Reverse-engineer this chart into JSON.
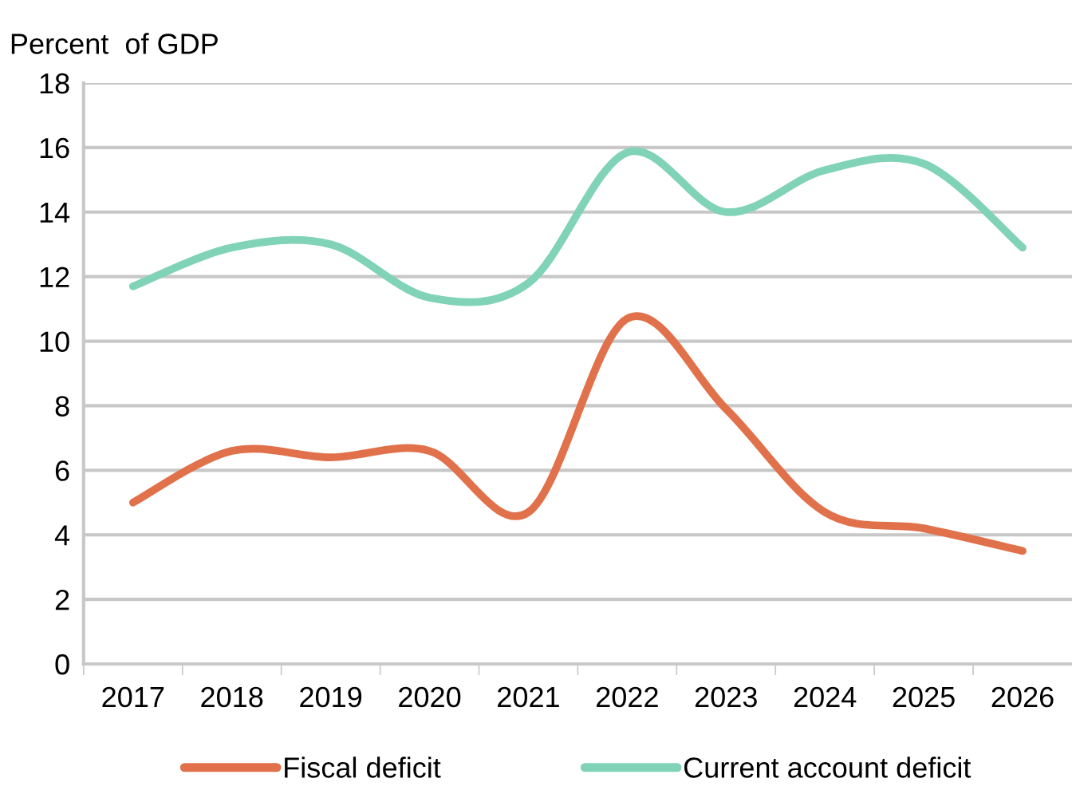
{
  "chart_data": {
    "type": "line",
    "ylabel": "Percent  of GDP",
    "categories": [
      "2017",
      "2018",
      "2019",
      "2020",
      "2021",
      "2022",
      "2023",
      "2024",
      "2025",
      "2026"
    ],
    "series": [
      {
        "name": "Fiscal deficit",
        "color": "#e0714b",
        "values": [
          5.0,
          6.6,
          6.4,
          6.6,
          4.7,
          10.7,
          7.9,
          4.7,
          4.2,
          3.5
        ]
      },
      {
        "name": "Current account deficit",
        "color": "#80d3b7",
        "values": [
          11.7,
          12.9,
          13.0,
          11.35,
          11.8,
          15.85,
          14.0,
          15.3,
          15.5,
          12.9
        ]
      }
    ],
    "ylim": [
      0,
      18
    ],
    "yticks": [
      0,
      2,
      4,
      6,
      8,
      10,
      12,
      14,
      16,
      18
    ],
    "grid": "y",
    "legend": "bottom",
    "marker": "none",
    "line_style": "solid"
  }
}
